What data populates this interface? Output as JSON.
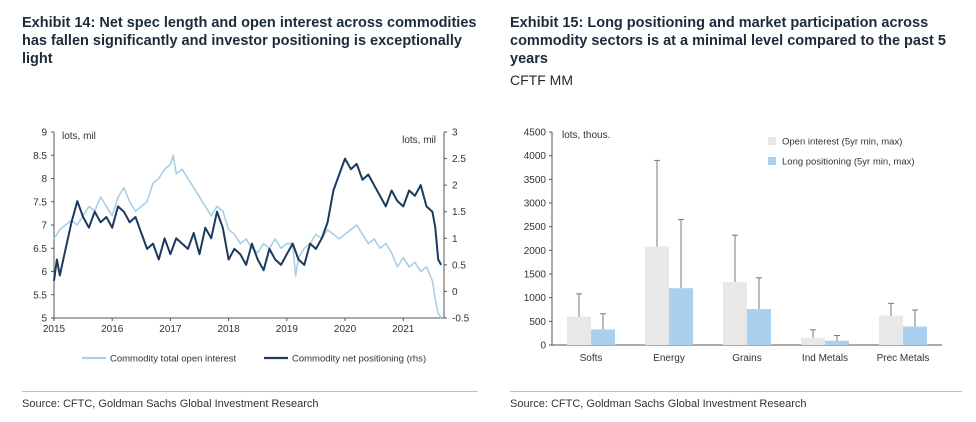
{
  "exhibit14": {
    "title": "Exhibit 14: Net spec length and open interest across commodities has fallen significantly and investor positioning is exceptionally light",
    "source": "Source: CFTC, Goldman Sachs Global Investment Research",
    "chart_data": {
      "type": "line",
      "left_axis_label": "lots, mil",
      "right_axis_label": "lots, mil",
      "ylim_left": [
        5,
        9
      ],
      "ylim_right": [
        -0.5,
        3
      ],
      "yticks_left": [
        "9",
        "8.5",
        "8",
        "7.5",
        "7",
        "6.5",
        "6",
        "5.5",
        "5"
      ],
      "yticks_right": [
        "3",
        "2.5",
        "2",
        "1.5",
        "1",
        "0.5",
        "0",
        "-0.5"
      ],
      "xlim": [
        2015,
        2021.7
      ],
      "xticks": [
        "2015",
        "2016",
        "2017",
        "2018",
        "2019",
        "2020",
        "2021"
      ],
      "legend_position": "bottom",
      "series": [
        {
          "name": "Commodity total open interest",
          "axis": "left",
          "color": "#a9cfe8",
          "x": [
            2015.0,
            2015.1,
            2015.2,
            2015.3,
            2015.4,
            2015.5,
            2015.6,
            2015.7,
            2015.8,
            2015.9,
            2016.0,
            2016.1,
            2016.2,
            2016.3,
            2016.4,
            2016.5,
            2016.6,
            2016.7,
            2016.8,
            2016.9,
            2017.0,
            2017.05,
            2017.1,
            2017.2,
            2017.3,
            2017.4,
            2017.5,
            2017.6,
            2017.7,
            2017.8,
            2017.9,
            2018.0,
            2018.1,
            2018.2,
            2018.3,
            2018.4,
            2018.5,
            2018.6,
            2018.7,
            2018.8,
            2018.9,
            2019.0,
            2019.1,
            2019.15,
            2019.2,
            2019.3,
            2019.4,
            2019.5,
            2019.6,
            2019.7,
            2019.8,
            2019.9,
            2020.0,
            2020.1,
            2020.2,
            2020.3,
            2020.4,
            2020.5,
            2020.6,
            2020.7,
            2020.8,
            2020.9,
            2021.0,
            2021.1,
            2021.2,
            2021.3,
            2021.4,
            2021.5,
            2021.55,
            2021.6,
            2021.65
          ],
          "values": [
            6.7,
            6.9,
            7.0,
            7.1,
            7.0,
            7.2,
            7.4,
            7.3,
            7.6,
            7.4,
            7.2,
            7.6,
            7.8,
            7.5,
            7.3,
            7.4,
            7.5,
            7.9,
            8.0,
            8.2,
            8.3,
            8.5,
            8.1,
            8.2,
            8.0,
            7.8,
            7.6,
            7.4,
            7.2,
            7.4,
            7.3,
            6.9,
            6.8,
            6.6,
            6.7,
            6.5,
            6.4,
            6.6,
            6.5,
            6.7,
            6.5,
            6.6,
            6.6,
            5.9,
            6.3,
            6.5,
            6.6,
            6.8,
            6.7,
            6.9,
            6.8,
            6.7,
            6.8,
            6.9,
            7.0,
            6.8,
            6.6,
            6.7,
            6.5,
            6.6,
            6.4,
            6.1,
            6.3,
            6.1,
            6.2,
            6.0,
            6.1,
            5.8,
            5.4,
            5.1,
            5.0
          ]
        },
        {
          "name": "Commodity net positioning (rhs)",
          "axis": "right",
          "color": "#1c3a5f",
          "x": [
            2015.0,
            2015.05,
            2015.1,
            2015.2,
            2015.3,
            2015.4,
            2015.5,
            2015.6,
            2015.7,
            2015.8,
            2015.9,
            2016.0,
            2016.1,
            2016.2,
            2016.3,
            2016.4,
            2016.5,
            2016.6,
            2016.7,
            2016.8,
            2016.9,
            2017.0,
            2017.1,
            2017.2,
            2017.3,
            2017.4,
            2017.5,
            2017.6,
            2017.7,
            2017.8,
            2017.9,
            2018.0,
            2018.1,
            2018.2,
            2018.3,
            2018.4,
            2018.5,
            2018.6,
            2018.7,
            2018.8,
            2018.9,
            2019.0,
            2019.1,
            2019.2,
            2019.3,
            2019.4,
            2019.5,
            2019.6,
            2019.7,
            2019.8,
            2019.9,
            2020.0,
            2020.1,
            2020.2,
            2020.3,
            2020.4,
            2020.5,
            2020.6,
            2020.7,
            2020.8,
            2020.9,
            2021.0,
            2021.1,
            2021.2,
            2021.3,
            2021.4,
            2021.5,
            2021.55,
            2021.6,
            2021.65
          ],
          "values": [
            0.2,
            0.6,
            0.3,
            0.8,
            1.3,
            1.7,
            1.4,
            1.2,
            1.5,
            1.3,
            1.4,
            1.2,
            1.6,
            1.5,
            1.3,
            1.4,
            1.1,
            0.8,
            0.9,
            0.6,
            1.0,
            0.7,
            1.0,
            0.9,
            0.8,
            1.1,
            0.7,
            1.2,
            1.0,
            1.5,
            1.2,
            0.6,
            0.8,
            0.7,
            0.5,
            0.9,
            0.6,
            0.4,
            0.8,
            0.6,
            0.5,
            0.7,
            0.9,
            0.6,
            0.5,
            0.9,
            0.8,
            1.0,
            1.3,
            1.9,
            2.2,
            2.5,
            2.3,
            2.4,
            2.1,
            2.2,
            2.0,
            1.8,
            1.6,
            1.9,
            1.7,
            1.6,
            1.9,
            1.8,
            2.0,
            1.6,
            1.5,
            1.2,
            0.6,
            0.5
          ]
        }
      ]
    }
  },
  "exhibit15": {
    "title": "Exhibit 15: Long positioning and market participation across commodity sectors is at a minimal level compared to the past 5 years",
    "subtitle": "CFTF MM",
    "source": "Source: CFTC, Goldman Sachs Global Investment Research",
    "chart_data": {
      "type": "bar",
      "ylabel": "lots, thous.",
      "ylim": [
        0,
        4500
      ],
      "yticks": [
        "4500",
        "4000",
        "3500",
        "3000",
        "2500",
        "2000",
        "1500",
        "1000",
        "500",
        "0"
      ],
      "categories": [
        "Softs",
        "Energy",
        "Grains",
        "Ind Metals",
        "Prec Metals"
      ],
      "legend_position": "top-right",
      "series": [
        {
          "name": "Open interest (5yr min, max)",
          "color": "#e8e8e8",
          "values": [
            600,
            2080,
            1330,
            150,
            620
          ],
          "err_max": [
            1080,
            3900,
            2320,
            320,
            880
          ]
        },
        {
          "name": "Long positioning (5yr min, max)",
          "color": "#a9d1ef",
          "values": [
            330,
            1200,
            760,
            90,
            390
          ],
          "err_max": [
            660,
            2650,
            1420,
            200,
            740
          ]
        }
      ]
    }
  }
}
